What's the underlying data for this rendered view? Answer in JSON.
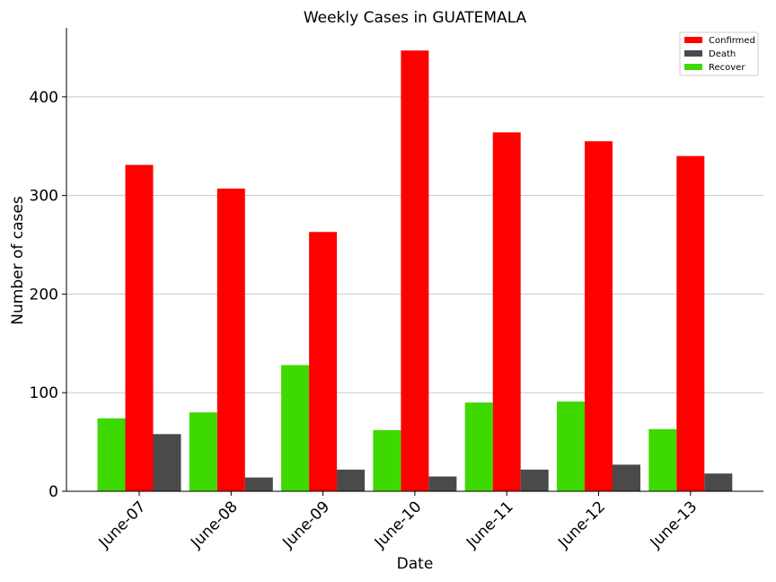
{
  "chart_data": {
    "type": "bar",
    "title": "Weekly Cases in GUATEMALA",
    "xlabel": "Date",
    "ylabel": "Number of cases",
    "categories": [
      "June-07",
      "June-08",
      "June-09",
      "June-10",
      "June-11",
      "June-12",
      "June-13"
    ],
    "series": [
      {
        "name": "Recover",
        "color": "#3dd900",
        "values": [
          74,
          80,
          128,
          62,
          90,
          91,
          63
        ]
      },
      {
        "name": "Confirmed",
        "color": "#ff0000",
        "values": [
          331,
          307,
          263,
          447,
          364,
          355,
          340
        ]
      },
      {
        "name": "Death",
        "color": "#4a4a4a",
        "values": [
          58,
          14,
          22,
          15,
          22,
          27,
          18
        ]
      }
    ],
    "legend_order": [
      "Confirmed",
      "Death",
      "Recover"
    ],
    "ylim": [
      0,
      470
    ],
    "yticks": [
      0,
      100,
      200,
      300,
      400
    ],
    "grid": "y",
    "legend_position": "top-right"
  }
}
